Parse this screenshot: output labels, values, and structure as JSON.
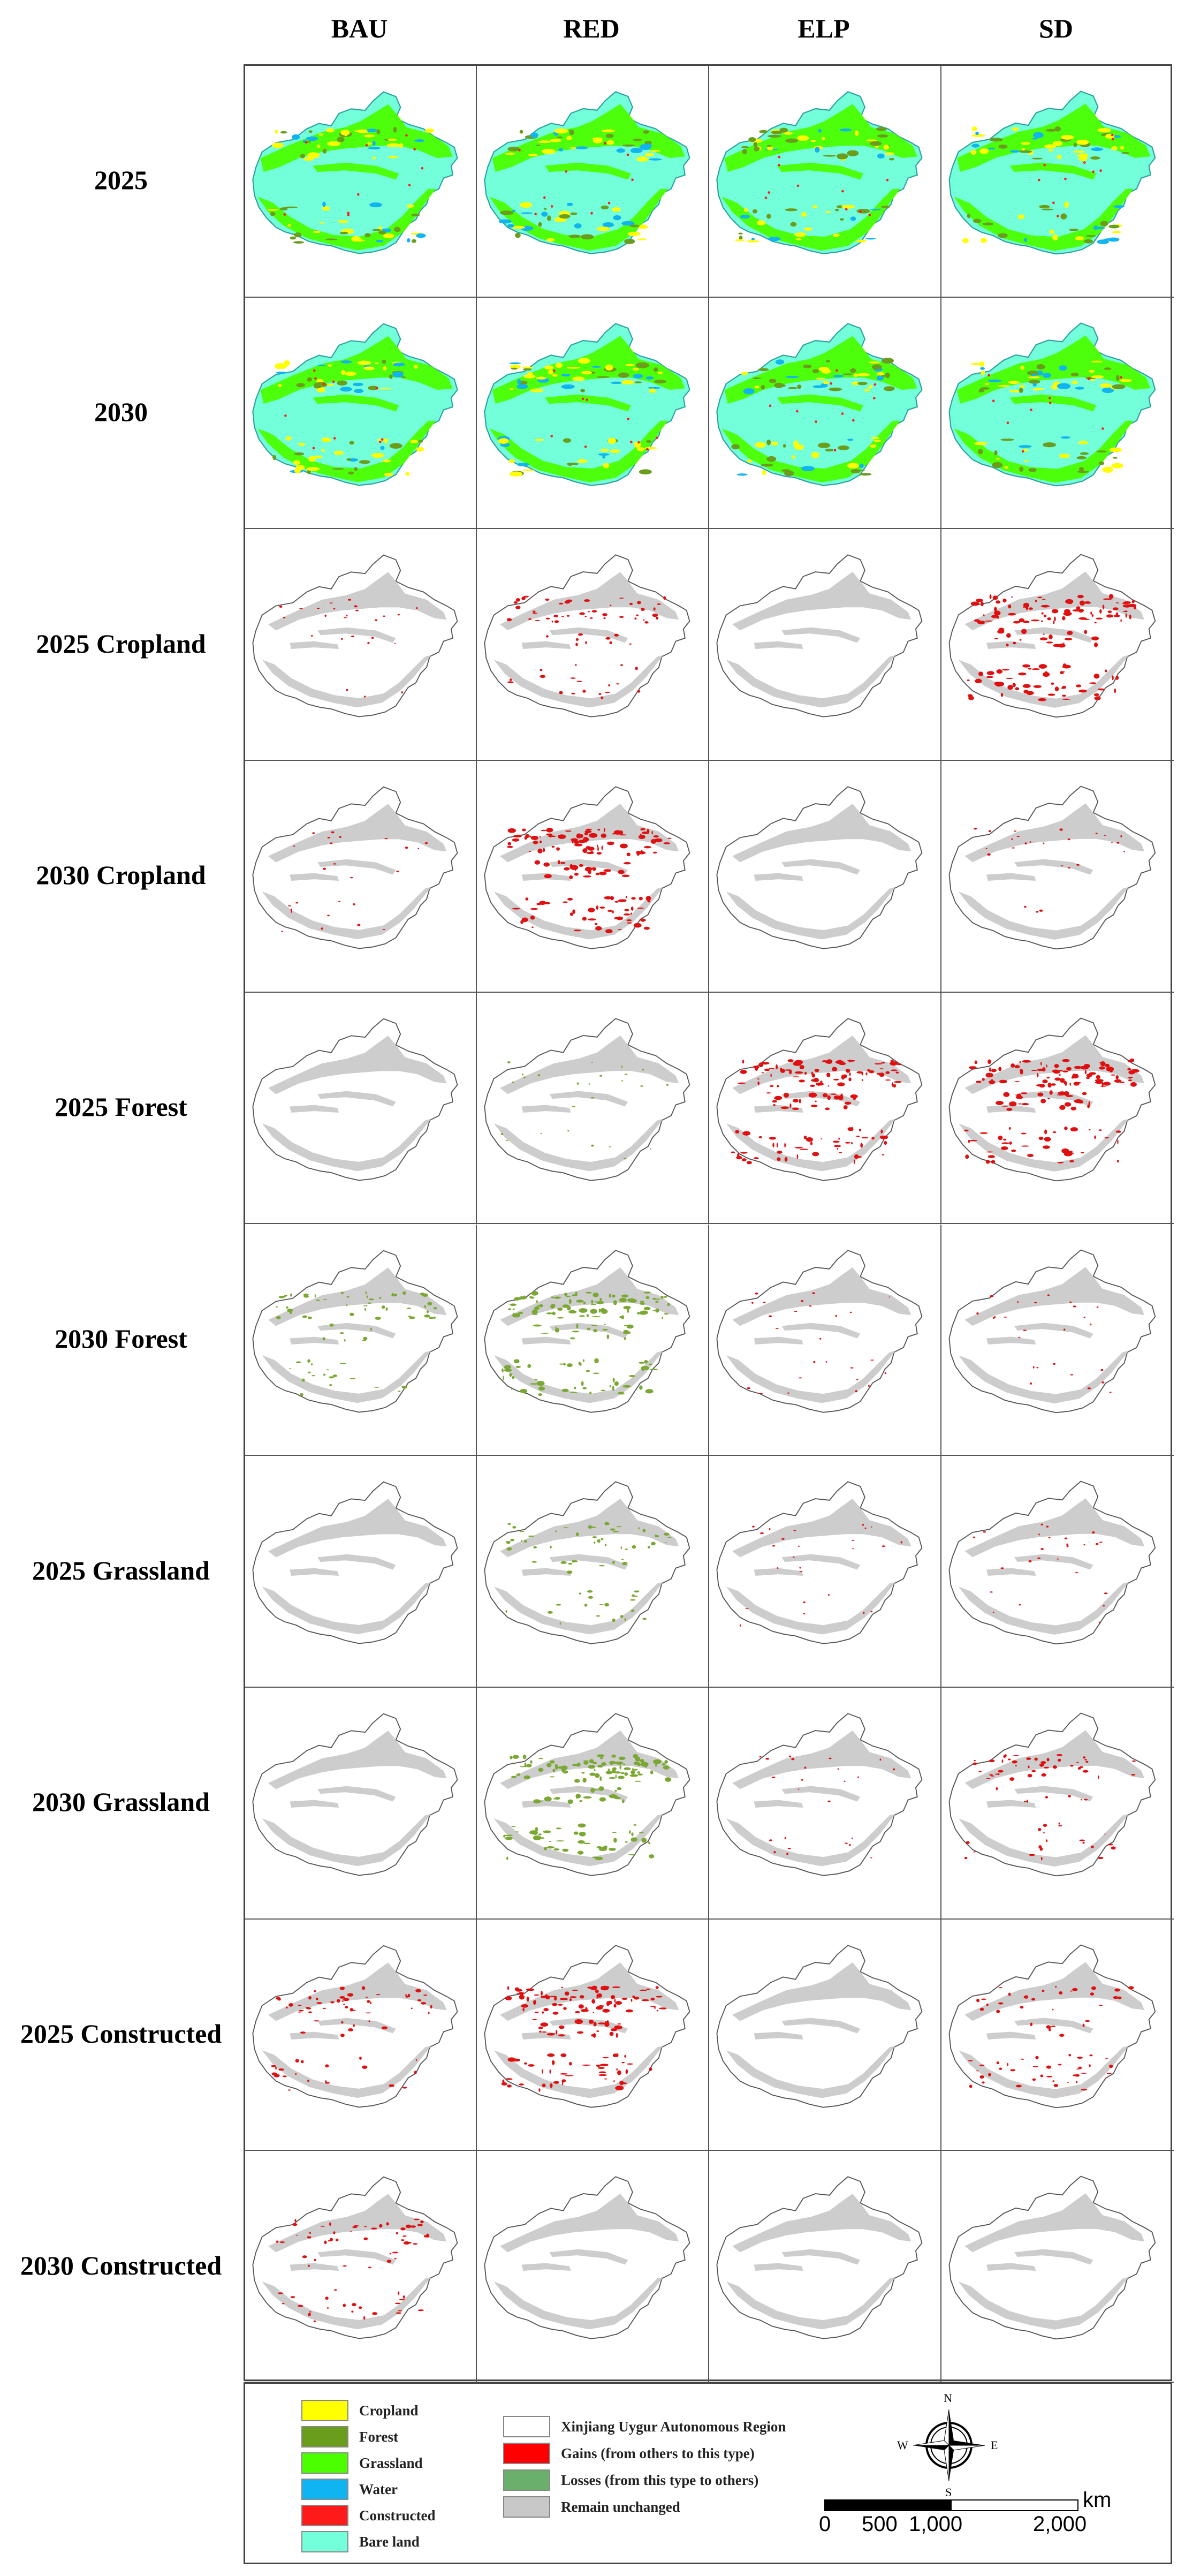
{
  "columns": [
    "BAU",
    "RED",
    "ELP",
    "SD"
  ],
  "rows": [
    {
      "label": "2025",
      "kind": "landuse"
    },
    {
      "label": "2030",
      "kind": "landuse"
    },
    {
      "label": "2025 Cropland",
      "kind": "change",
      "gain": [
        1,
        2,
        0,
        3
      ],
      "loss": [
        0,
        0,
        0,
        0
      ]
    },
    {
      "label": "2030 Cropland",
      "kind": "change",
      "gain": [
        1,
        3,
        0,
        1
      ],
      "loss": [
        0,
        0,
        0,
        0
      ]
    },
    {
      "label": "2025 Forest",
      "kind": "change",
      "gain": [
        0,
        0,
        3,
        3
      ],
      "loss": [
        0,
        1,
        0,
        0
      ]
    },
    {
      "label": "2030 Forest",
      "kind": "change",
      "gain": [
        0,
        0,
        1,
        1
      ],
      "loss": [
        2,
        3,
        0,
        0
      ]
    },
    {
      "label": "2025 Grassland",
      "kind": "change",
      "gain": [
        0,
        0,
        1,
        1
      ],
      "loss": [
        0,
        2,
        0,
        0
      ]
    },
    {
      "label": "2030 Grassland",
      "kind": "change",
      "gain": [
        0,
        0,
        1,
        2
      ],
      "loss": [
        0,
        3,
        0,
        0
      ]
    },
    {
      "label": "2025 Constructed",
      "kind": "change",
      "gain": [
        2,
        3,
        0,
        2
      ],
      "loss": [
        0,
        0,
        0,
        0
      ]
    },
    {
      "label": "2030 Constructed",
      "kind": "change",
      "gain": [
        2,
        0,
        0,
        0
      ],
      "loss": [
        0,
        0,
        0,
        0
      ]
    }
  ],
  "legend": {
    "land_types": [
      {
        "label": "Cropland",
        "color": "#ffff00"
      },
      {
        "label": "Forest",
        "color": "#6b9d1c"
      },
      {
        "label": "Grassland",
        "color": "#4cff00"
      },
      {
        "label": "Water",
        "color": "#0fb4f0"
      },
      {
        "label": "Constructed",
        "color": "#ff1a1a"
      },
      {
        "label": "Bare land",
        "color": "#73ffd9"
      }
    ],
    "change_types": [
      {
        "label": "Xinjiang Uygur Autonomous Region",
        "color": "#ffffff"
      },
      {
        "label": "Gains (from others to this type)",
        "color": "#ff0000"
      },
      {
        "label": "Losses (from this type to others)",
        "color": "#6ab06a"
      },
      {
        "label": "Remain unchanged",
        "color": "#c8c8c8"
      }
    ],
    "scale": {
      "unit": "km",
      "ticks": [
        "0",
        "500",
        "1,000",
        "2,000"
      ]
    },
    "compass": {
      "n": "N",
      "s": "S",
      "e": "E",
      "w": "W"
    }
  },
  "colors": {
    "outline": "#555555",
    "unchanged": "#c8c8c8",
    "gain": "#e01010",
    "loss": "#7aa832"
  }
}
